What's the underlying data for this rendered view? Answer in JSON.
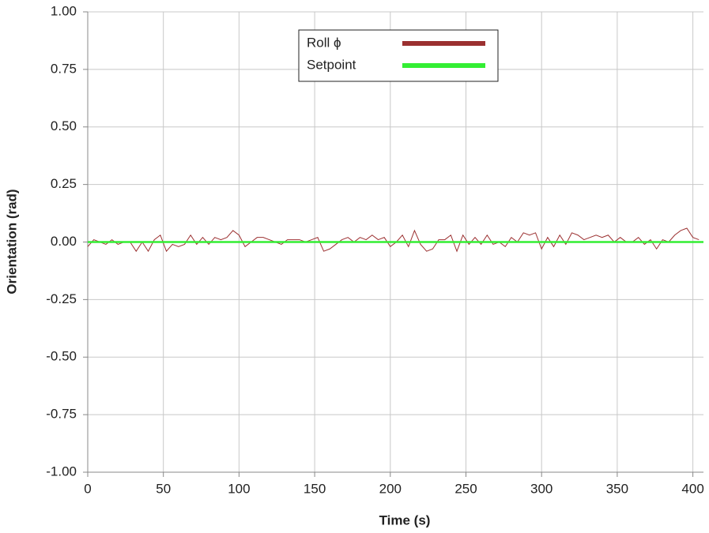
{
  "chart_data": {
    "type": "line",
    "xlabel": "Time (s)",
    "ylabel": "Orientation (rad)",
    "xlim": [
      0,
      407
    ],
    "xticks": [
      0,
      50,
      100,
      150,
      200,
      250,
      300,
      350,
      400
    ],
    "ylim": [
      -1,
      1
    ],
    "yticks": [
      {
        "value": -1,
        "label": "-1.00"
      },
      {
        "value": -0.75,
        "label": "-0.75"
      },
      {
        "value": -0.5,
        "label": "-0.50"
      },
      {
        "value": -0.25,
        "label": "-0.25"
      },
      {
        "value": 0,
        "label": "0.00"
      },
      {
        "value": 0.25,
        "label": "0.25"
      },
      {
        "value": 0.5,
        "label": "0.50"
      },
      {
        "value": 0.75,
        "label": "0.75"
      },
      {
        "value": 1,
        "label": "1.00"
      }
    ],
    "grid": true,
    "legend": "top",
    "series": [
      {
        "name": "Roll ϕ",
        "color": "#9b3030",
        "x": [
          0,
          4,
          8,
          12,
          16,
          20,
          24,
          28,
          32,
          36,
          40,
          44,
          48,
          52,
          56,
          60,
          64,
          68,
          72,
          76,
          80,
          84,
          88,
          92,
          96,
          100,
          104,
          108,
          112,
          116,
          120,
          124,
          128,
          132,
          136,
          140,
          144,
          148,
          152,
          156,
          160,
          164,
          168,
          172,
          176,
          180,
          184,
          188,
          192,
          196,
          200,
          204,
          208,
          212,
          216,
          220,
          224,
          228,
          232,
          236,
          240,
          244,
          248,
          252,
          256,
          260,
          264,
          268,
          272,
          276,
          280,
          284,
          288,
          292,
          296,
          300,
          304,
          308,
          312,
          316,
          320,
          324,
          328,
          332,
          336,
          340,
          344,
          348,
          352,
          356,
          360,
          364,
          368,
          372,
          376,
          380,
          384,
          388,
          392,
          396,
          400,
          404
        ],
        "values": [
          -0.02,
          0.01,
          0.0,
          -0.01,
          0.01,
          -0.01,
          0.0,
          0.0,
          -0.04,
          0.0,
          -0.04,
          0.01,
          0.03,
          -0.04,
          -0.01,
          -0.02,
          -0.01,
          0.03,
          -0.01,
          0.02,
          -0.01,
          0.02,
          0.01,
          0.02,
          0.05,
          0.03,
          -0.02,
          0.0,
          0.02,
          0.02,
          0.01,
          0.0,
          -0.01,
          0.01,
          0.01,
          0.01,
          0.0,
          0.01,
          0.02,
          -0.04,
          -0.03,
          -0.01,
          0.01,
          0.02,
          0.0,
          0.02,
          0.01,
          0.03,
          0.01,
          0.02,
          -0.02,
          0.0,
          0.03,
          -0.02,
          0.05,
          -0.01,
          -0.04,
          -0.03,
          0.01,
          0.01,
          0.03,
          -0.04,
          0.03,
          -0.01,
          0.02,
          -0.01,
          0.03,
          -0.01,
          0.0,
          -0.02,
          0.02,
          0.0,
          0.04,
          0.03,
          0.04,
          -0.03,
          0.02,
          -0.02,
          0.03,
          -0.01,
          0.04,
          0.03,
          0.01,
          0.02,
          0.03,
          0.02,
          0.03,
          0.0,
          0.02,
          0.0,
          0.0,
          0.02,
          -0.01,
          0.01,
          -0.03,
          0.01,
          0.0,
          0.03,
          0.05,
          0.06,
          0.02,
          0.01
        ]
      },
      {
        "name": "Setpoint",
        "color": "#33ee33",
        "x": [
          0,
          407
        ],
        "values": [
          0,
          0
        ]
      }
    ]
  }
}
